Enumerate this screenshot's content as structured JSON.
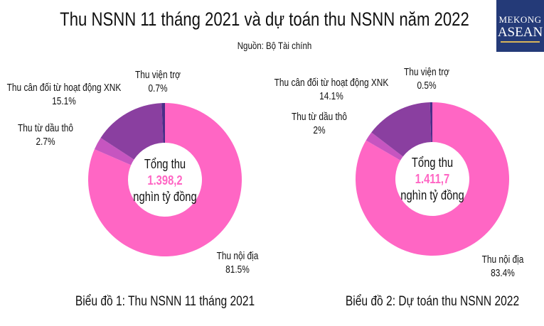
{
  "title": "Thu NSNN 11 tháng 2021 và dự toán thu NSNN năm 2022",
  "source": "Nguồn: Bộ Tài chính",
  "logo": {
    "line1": "MEKONG",
    "line2": "ASEAN"
  },
  "chart_data": [
    {
      "type": "pie",
      "subtitle": "Biểu đồ 1: Thu NSNN 11 tháng 2021",
      "center": {
        "label": "Tổng thu",
        "value": "1.398,2",
        "unit": "nghìn tỷ đồng"
      },
      "categories": [
        "Thu nội địa",
        "Thu từ dầu thô",
        "Thu cân đối từ hoạt động XNK",
        "Thu viện trợ"
      ],
      "values": [
        81.5,
        2.7,
        15.1,
        0.7
      ],
      "value_labels": [
        "81.5%",
        "2.7%",
        "15.1%",
        "0.7%"
      ],
      "colors": [
        "#ff66c4",
        "#c655c0",
        "#8a3fa0",
        "#4a2d88"
      ]
    },
    {
      "type": "pie",
      "subtitle": "Biểu đồ 2: Dự toán thu NSNN 2022",
      "center": {
        "label": "Tổng thu",
        "value": "1.411,7",
        "unit": "nghìn tỷ đồng"
      },
      "categories": [
        "Thu nội địa",
        "Thu từ dầu thô",
        "Thu cân đối từ hoạt động XNK",
        "Thu viện trợ"
      ],
      "values": [
        83.4,
        2,
        14.1,
        0.5
      ],
      "value_labels": [
        "83.4%",
        "2%",
        "14.1%",
        "0.5%"
      ],
      "colors": [
        "#ff66c4",
        "#c655c0",
        "#8a3fa0",
        "#4a2d88"
      ]
    }
  ]
}
